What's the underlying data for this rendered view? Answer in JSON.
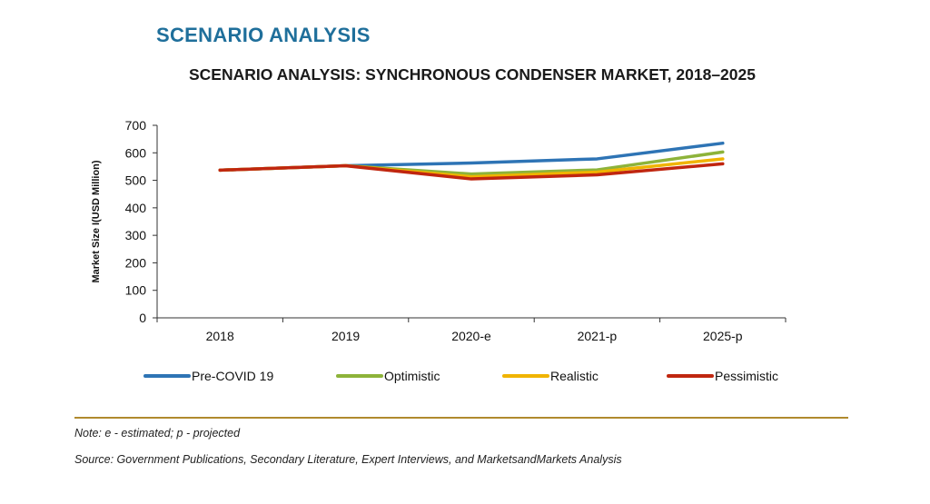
{
  "header": {
    "section_title": "SCENARIO ANALYSIS"
  },
  "chart_data": {
    "type": "line",
    "title": "SCENARIO ANALYSIS: SYNCHRONOUS CONDENSER MARKET, 2018–2025",
    "xlabel": "",
    "ylabel": "Market Size I(USD Million)",
    "categories": [
      "2018",
      "2019",
      "2020-e",
      "2021-p",
      "2025-p"
    ],
    "ylim": [
      0,
      700
    ],
    "yticks": [
      0,
      100,
      200,
      300,
      400,
      500,
      600,
      700
    ],
    "grid": false,
    "legend_position": "bottom",
    "series": [
      {
        "name": "Pre-COVID 19",
        "color": "#2e74b5",
        "values": [
          537,
          553,
          563,
          578,
          635
        ]
      },
      {
        "name": "Optimistic",
        "color": "#8db33a",
        "values": [
          537,
          553,
          523,
          538,
          603
        ]
      },
      {
        "name": "Realistic",
        "color": "#f0b400",
        "values": [
          537,
          553,
          513,
          530,
          578
        ]
      },
      {
        "name": "Pessimistic",
        "color": "#c0260f",
        "values": [
          537,
          553,
          505,
          520,
          560
        ]
      }
    ]
  },
  "footer": {
    "note": "Note: e - estimated; p - projected",
    "source": "Source: Government Publications, Secondary Literature, Expert Interviews, and MarketsandMarkets Analysis"
  }
}
